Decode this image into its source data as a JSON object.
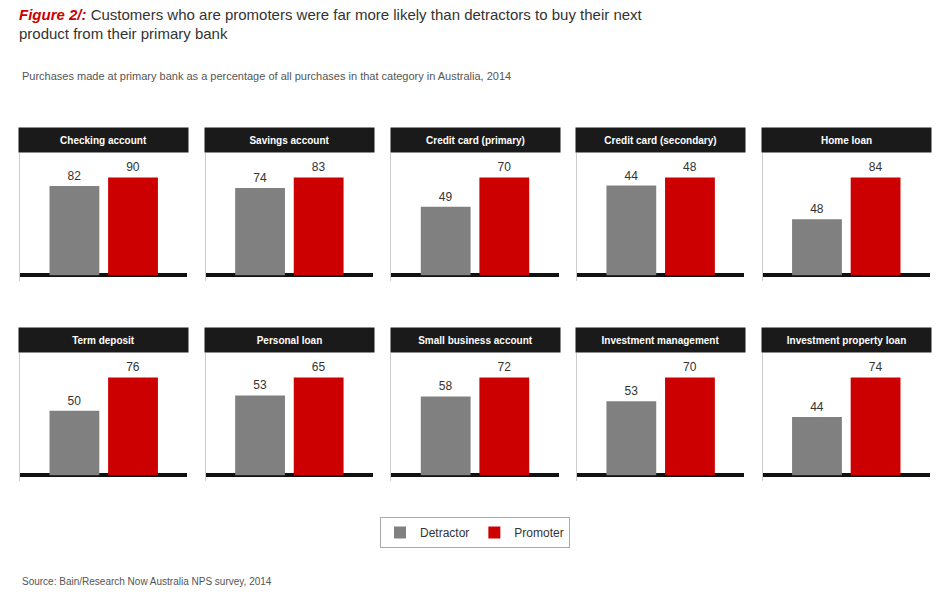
{
  "title": "Figure 2/: Customers who are promoters were far more likely than detractors to buy their next product from their primary bank",
  "subtitle": "Purchases made at primary bank as a percentage of all purchases in that category in Australia, 2014",
  "annotations": [
    "Source: Bain/Research Now Australia NPS survey, 2014"
  ],
  "chart_data": [
    {
      "type": "bar",
      "title": "Checking account",
      "categories": [
        null
      ],
      "series": [
        {
          "name": "Detractor",
          "color": "#808080",
          "values": [
            82
          ]
        },
        {
          "name": "Promoter",
          "color": "#cc0000",
          "values": [
            90
          ]
        }
      ],
      "ylim": [
        -5.4,
        112.5
      ],
      "data_labels": true,
      "tick_labels": false,
      "grid": false,
      "legend": "bottom"
    },
    {
      "type": "bar",
      "title": "Savings account",
      "categories": [
        null
      ],
      "series": [
        {
          "name": "Detractor",
          "color": "#808080",
          "values": [
            74
          ]
        },
        {
          "name": "Promoter",
          "color": "#cc0000",
          "values": [
            83
          ]
        }
      ],
      "ylim": [
        -4.98,
        103.75
      ],
      "data_labels": true,
      "tick_labels": false,
      "grid": false,
      "legend": "bottom"
    },
    {
      "type": "bar",
      "title": "Credit card (primary)",
      "categories": [
        null
      ],
      "series": [
        {
          "name": "Detractor",
          "color": "#808080",
          "values": [
            49
          ]
        },
        {
          "name": "Promoter",
          "color": "#cc0000",
          "values": [
            70
          ]
        }
      ],
      "ylim": [
        -4.2,
        87.5
      ],
      "data_labels": true,
      "tick_labels": false,
      "grid": false,
      "legend": "bottom"
    },
    {
      "type": "bar",
      "title": "Credit card (secondary)",
      "categories": [
        null
      ],
      "series": [
        {
          "name": "Detractor",
          "color": "#808080",
          "values": [
            44
          ]
        },
        {
          "name": "Promoter",
          "color": "#cc0000",
          "values": [
            48
          ]
        }
      ],
      "ylim": [
        -2.88,
        60
      ],
      "data_labels": true,
      "tick_labels": false,
      "grid": false,
      "legend": "bottom"
    },
    {
      "type": "bar",
      "title": "Home loan",
      "categories": [
        null
      ],
      "series": [
        {
          "name": "Detractor",
          "color": "#808080",
          "values": [
            48
          ]
        },
        {
          "name": "Promoter",
          "color": "#cc0000",
          "values": [
            84
          ]
        }
      ],
      "ylim": [
        -5.04,
        105
      ],
      "data_labels": true,
      "tick_labels": false,
      "grid": false,
      "legend": "bottom"
    },
    {
      "type": "bar",
      "title": "Term deposit",
      "categories": [
        null
      ],
      "series": [
        {
          "name": "Detractor",
          "color": "#808080",
          "values": [
            50
          ]
        },
        {
          "name": "Promoter",
          "color": "#cc0000",
          "values": [
            76
          ]
        }
      ],
      "ylim": [
        -4.56,
        95
      ],
      "data_labels": true,
      "tick_labels": false,
      "grid": false,
      "legend": "bottom"
    },
    {
      "type": "bar",
      "title": "Personal loan",
      "categories": [
        null
      ],
      "series": [
        {
          "name": "Detractor",
          "color": "#808080",
          "values": [
            53
          ]
        },
        {
          "name": "Promoter",
          "color": "#cc0000",
          "values": [
            65
          ]
        }
      ],
      "ylim": [
        -3.9,
        81.25
      ],
      "data_labels": true,
      "tick_labels": false,
      "grid": false,
      "legend": "bottom"
    },
    {
      "type": "bar",
      "title": "Small business account",
      "categories": [
        null
      ],
      "series": [
        {
          "name": "Detractor",
          "color": "#808080",
          "values": [
            58
          ]
        },
        {
          "name": "Promoter",
          "color": "#cc0000",
          "values": [
            72
          ]
        }
      ],
      "ylim": [
        -4.32,
        90
      ],
      "data_labels": true,
      "tick_labels": false,
      "grid": false,
      "legend": "bottom"
    },
    {
      "type": "bar",
      "title": "Investment management",
      "categories": [
        null
      ],
      "series": [
        {
          "name": "Detractor",
          "color": "#808080",
          "values": [
            53
          ]
        },
        {
          "name": "Promoter",
          "color": "#cc0000",
          "values": [
            70
          ]
        }
      ],
      "ylim": [
        -4.2,
        87.5
      ],
      "data_labels": true,
      "tick_labels": false,
      "grid": false,
      "legend": "bottom"
    },
    {
      "type": "bar",
      "title": "Investment property loan",
      "categories": [
        null
      ],
      "series": [
        {
          "name": "Detractor",
          "color": "#808080",
          "values": [
            44
          ]
        },
        {
          "name": "Promoter",
          "color": "#cc0000",
          "values": [
            74
          ]
        }
      ],
      "ylim": [
        -4.44,
        92.5
      ],
      "data_labels": true,
      "tick_labels": false,
      "grid": false,
      "legend": "bottom"
    }
  ]
}
